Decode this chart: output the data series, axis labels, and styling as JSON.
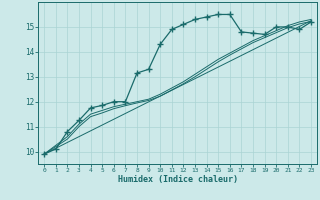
{
  "title": "",
  "xlabel": "Humidex (Indice chaleur)",
  "xlim": [
    -0.5,
    23.5
  ],
  "ylim": [
    9.5,
    16.0
  ],
  "yticks": [
    10,
    11,
    12,
    13,
    14,
    15
  ],
  "xticks": [
    0,
    1,
    2,
    3,
    4,
    5,
    6,
    7,
    8,
    9,
    10,
    11,
    12,
    13,
    14,
    15,
    16,
    17,
    18,
    19,
    20,
    21,
    22,
    23
  ],
  "bg_color": "#cce9e9",
  "line_color": "#1a6b6b",
  "grid_color": "#aad4d4",
  "main_line_x": [
    0,
    1,
    2,
    3,
    4,
    5,
    6,
    7,
    8,
    9,
    10,
    11,
    12,
    13,
    14,
    15,
    16,
    17,
    18,
    19,
    20,
    21,
    22,
    23
  ],
  "main_line_y": [
    9.9,
    10.1,
    10.8,
    11.25,
    11.75,
    11.85,
    12.0,
    12.0,
    13.15,
    13.3,
    14.3,
    14.9,
    15.1,
    15.3,
    15.4,
    15.5,
    15.5,
    14.8,
    14.75,
    14.7,
    15.0,
    15.0,
    14.9,
    15.2
  ],
  "line2_x": [
    0,
    2,
    3,
    4,
    5,
    6,
    7,
    8,
    9,
    10,
    11,
    12,
    13,
    14,
    15,
    16,
    17,
    18,
    19,
    20,
    21,
    22,
    23
  ],
  "line2_y": [
    9.9,
    10.6,
    11.1,
    11.5,
    11.65,
    11.8,
    11.9,
    12.0,
    12.1,
    12.3,
    12.55,
    12.8,
    13.1,
    13.4,
    13.7,
    13.95,
    14.2,
    14.45,
    14.65,
    14.85,
    15.05,
    15.2,
    15.3
  ],
  "line3_x": [
    0,
    2,
    3,
    4,
    5,
    6,
    7,
    8,
    9,
    10,
    11,
    12,
    13,
    14,
    15,
    16,
    17,
    18,
    19,
    20,
    21,
    22,
    23
  ],
  "line3_y": [
    9.9,
    10.5,
    11.0,
    11.4,
    11.55,
    11.72,
    11.84,
    11.95,
    12.05,
    12.22,
    12.47,
    12.72,
    13.0,
    13.3,
    13.6,
    13.87,
    14.12,
    14.37,
    14.57,
    14.77,
    14.97,
    15.12,
    15.22
  ],
  "line4_x": [
    0,
    23
  ],
  "line4_y": [
    9.9,
    15.25
  ]
}
